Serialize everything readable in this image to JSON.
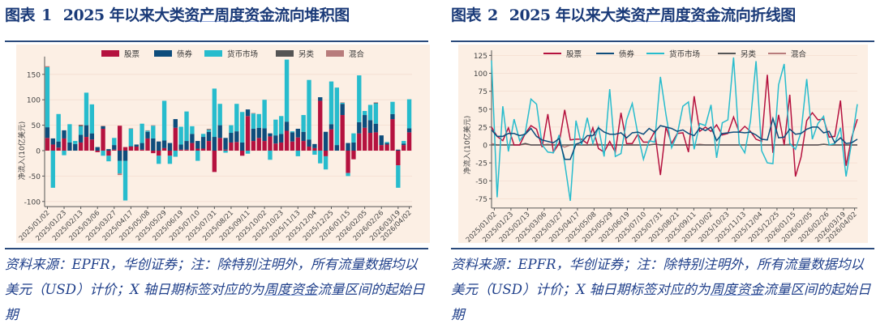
{
  "charts_header": [
    {
      "label": "图表",
      "num": "1",
      "title_pre": "2025 年以来大类",
      "title_link": "资产周度资金",
      "title_post": "流向堆积图"
    },
    {
      "label": "图表",
      "num": "2",
      "title_pre": "2025 年以来大类",
      "title_link": "资产周度资金",
      "title_post": "流向折线图"
    }
  ],
  "footnote": {
    "pre": "资料来源：EPFR，华创证券；注：除特别注明外，所有流量数据均以美元（USD）计价；X 轴日期标签对应的为",
    "link": "周度资金",
    "post": "流量区间的起始日期"
  },
  "colors": {
    "stock": "#b5123f",
    "bond": "#0e4d7c",
    "mm": "#27bccd",
    "other": "#555555",
    "mixed": "#b87c7c",
    "bg": "#fcefe4"
  },
  "chart_data": [
    {
      "type": "bar",
      "stacked": true,
      "title": "2025 年以来大类资产周度资金流向堆积图",
      "ylabel": "净流入(10亿美元)",
      "ylim": [
        -110,
        185
      ],
      "yticks": [
        -100,
        -50,
        0,
        50,
        100,
        150
      ],
      "legend": "top-center",
      "xtick_labels": [
        "2025/01/02",
        "2025/01/23",
        "2025/02/13",
        "2025/03/06",
        "2025/03/27",
        "2025/04/17",
        "2025/05/08",
        "2025/05/29",
        "2025/06/19",
        "2025/07/10",
        "2025/07/31",
        "2025/08/21",
        "2025/09/11",
        "2025/10/02",
        "2025/10/23",
        "2025/11/13",
        "2025/12/04",
        "2025/12/25",
        "2026/01/15",
        "2026/02/05",
        "2026/02/26",
        "2026/03/19",
        "2026/04/02"
      ],
      "xtick_index": [
        0,
        3,
        6,
        9,
        12,
        15,
        18,
        21,
        24,
        27,
        30,
        33,
        36,
        39,
        42,
        45,
        48,
        51,
        54,
        57,
        60,
        63,
        65
      ]
    },
    {
      "type": "line",
      "title": "2025 年以来大类资产周度资金流向折线图",
      "ylabel": "净流入(10亿美元)",
      "ylim": [
        -88,
        132
      ],
      "yticks": [
        -75,
        -50,
        -25,
        0,
        25,
        50,
        75,
        100,
        125
      ],
      "legend": "top-center",
      "same_data_as": 0
    }
  ],
  "series": [
    {
      "key": "stock",
      "name": "股票",
      "values": [
        25,
        12,
        6,
        24,
        0,
        0,
        16,
        27,
        22,
        -3,
        43,
        -10,
        2,
        49,
        7,
        8,
        8,
        2,
        24,
        -5,
        -10,
        5,
        -10,
        45,
        2,
        2,
        15,
        4,
        4,
        19,
        -42,
        25,
        2,
        16,
        17,
        -10,
        68,
        19,
        25,
        19,
        28,
        14,
        16,
        39,
        18,
        26,
        19,
        8,
        5,
        98,
        -11,
        42,
        0,
        70,
        -44,
        -17,
        34,
        45,
        35,
        36,
        11,
        12,
        62,
        -29,
        11,
        36
      ]
    },
    {
      "key": "bond",
      "name": "债券",
      "values": [
        21,
        12,
        12,
        16,
        16,
        13,
        15,
        23,
        12,
        7,
        5,
        3,
        9,
        -20,
        -20,
        1,
        4,
        13,
        13,
        24,
        18,
        15,
        15,
        17,
        10,
        17,
        18,
        15,
        23,
        18,
        27,
        25,
        23,
        19,
        21,
        16,
        13,
        24,
        20,
        25,
        6,
        16,
        17,
        18,
        18,
        17,
        18,
        14,
        8,
        7,
        37,
        10,
        11,
        22,
        15,
        16,
        22,
        25,
        25,
        17,
        19,
        3,
        10,
        2,
        3,
        8
      ]
    },
    {
      "key": "mm",
      "name": "货币市场",
      "values": [
        118,
        -73,
        54,
        -9,
        36,
        6,
        17,
        64,
        57,
        0,
        -10,
        -11,
        14,
        -25,
        -78,
        34,
        0,
        38,
        2,
        25,
        -16,
        78,
        -16,
        -12,
        35,
        58,
        15,
        -20,
        6,
        4,
        95,
        42,
        -4,
        15,
        54,
        60,
        -6,
        30,
        27,
        56,
        -18,
        31,
        35,
        122,
        2,
        -11,
        33,
        117,
        -8,
        -25,
        -26,
        84,
        113,
        2,
        -6,
        18,
        92,
        8,
        30,
        40,
        0,
        2,
        24,
        -44,
        5,
        57
      ]
    },
    {
      "key": "other",
      "name": "另类",
      "values": [
        0,
        0,
        0,
        0,
        0,
        0,
        2,
        0,
        0,
        0,
        0,
        0,
        0,
        0,
        0,
        0,
        0,
        0,
        0,
        0,
        0,
        0,
        0,
        0,
        0,
        0,
        0,
        0,
        0,
        1,
        0,
        0,
        0,
        0,
        0,
        0,
        0,
        0,
        0,
        0,
        0,
        0,
        0,
        0,
        0,
        0,
        0,
        0,
        0,
        0,
        0,
        0,
        0,
        0,
        0,
        0,
        0,
        0,
        0,
        1,
        0,
        0,
        0,
        0,
        0,
        0
      ]
    },
    {
      "key": "mixed",
      "name": "混合",
      "values": [
        2,
        0,
        0,
        0,
        0,
        0,
        1,
        0,
        0,
        0,
        1,
        0,
        0,
        -3,
        0,
        1,
        0,
        0,
        1,
        1,
        0,
        0,
        0,
        0,
        0,
        0,
        0,
        0,
        0,
        1,
        0,
        0,
        0,
        0,
        0,
        0,
        0,
        1,
        0,
        0,
        0,
        0,
        0,
        0,
        0,
        0,
        0,
        0,
        0,
        0,
        0,
        0,
        0,
        1,
        0,
        0,
        0,
        0,
        0,
        1,
        0,
        0,
        0,
        0,
        0,
        0
      ]
    }
  ]
}
